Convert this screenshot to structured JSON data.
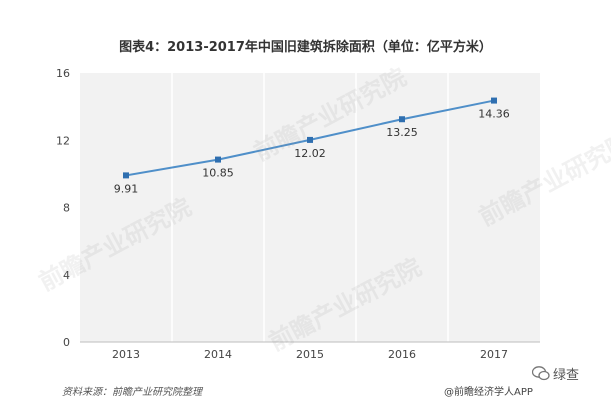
{
  "title": "图表4：2013-2017年中国旧建筑拆除面积（单位：亿平方米）",
  "footer": {
    "source": "资料来源：前瞻产业研究院整理",
    "brand": "@前瞻经济学人APP"
  },
  "watermark": {
    "text": "前瞻产业研究院"
  },
  "wechat": {
    "icon": "wechat-icon",
    "text": "绿查"
  },
  "colors": {
    "line": "#4f8fc9",
    "marker": "#2f6fb0",
    "plot_bg": "#f2f2f2"
  },
  "chart_data": {
    "type": "line",
    "categories": [
      "2013",
      "2014",
      "2015",
      "2016",
      "2017"
    ],
    "values": [
      9.91,
      10.85,
      12.02,
      13.25,
      14.36
    ],
    "labels": [
      "9.91",
      "10.85",
      "12.02",
      "13.25",
      "14.36"
    ],
    "yticks": [
      0,
      4,
      8,
      12,
      16
    ],
    "ylim": [
      0,
      16
    ],
    "title": "图表4：2013-2017年中国旧建筑拆除面积（单位：亿平方米）",
    "xlabel": "",
    "ylabel": "",
    "grid": "vertical"
  }
}
